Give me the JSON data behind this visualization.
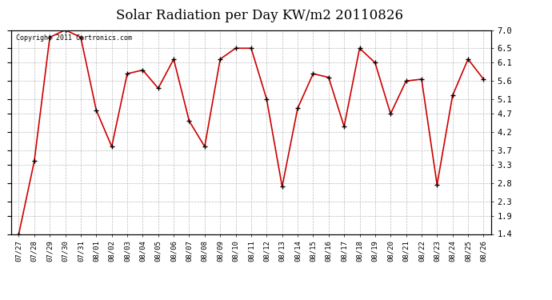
{
  "title": "Solar Radiation per Day KW/m2 20110826",
  "copyright_text": "Copyright 2011 Cartronics.com",
  "tick_labels": [
    "07/27",
    "07/28",
    "07/29",
    "07/30",
    "07/31",
    "08/01",
    "08/02",
    "08/03",
    "08/04",
    "08/05",
    "08/06",
    "08/07",
    "08/08",
    "08/09",
    "08/10",
    "08/11",
    "08/12",
    "08/13",
    "08/14",
    "08/15",
    "08/16",
    "08/17",
    "08/18",
    "08/19",
    "08/20",
    "08/21",
    "08/22",
    "08/23",
    "08/24",
    "08/25",
    "08/26"
  ],
  "values": [
    1.4,
    3.4,
    6.8,
    7.0,
    6.8,
    4.8,
    3.8,
    5.8,
    5.9,
    5.4,
    6.2,
    4.5,
    3.8,
    6.2,
    6.5,
    6.5,
    5.1,
    2.7,
    4.85,
    5.8,
    5.7,
    4.35,
    6.5,
    6.1,
    4.7,
    5.6,
    5.65,
    2.75,
    5.2,
    6.2,
    5.65
  ],
  "line_color": "#cc0000",
  "marker_color": "#000000",
  "background_color": "#ffffff",
  "grid_color": "#bbbbbb",
  "ylim": [
    1.4,
    7.0
  ],
  "yticks": [
    1.4,
    1.9,
    2.3,
    2.8,
    3.3,
    3.7,
    4.2,
    4.7,
    5.1,
    5.6,
    6.1,
    6.5,
    7.0
  ],
  "title_fontsize": 12,
  "tick_fontsize": 6.5,
  "ytick_fontsize": 7.5
}
